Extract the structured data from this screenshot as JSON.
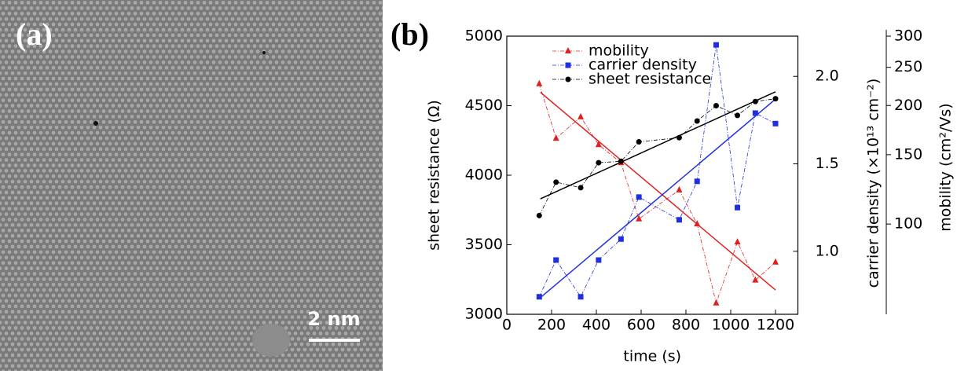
{
  "panel_a": {
    "label": "(a)",
    "scale_bar": "2 nm"
  },
  "chart_data": {
    "type": "line",
    "panel_label": "(b)",
    "x_label": "time (s)",
    "y_label": "sheet resistance (Ω)",
    "y2_label": "carrier density (×10¹³ cm⁻²)",
    "y3_label": "mobility (cm²/Vs)",
    "xlim": [
      0,
      1300
    ],
    "xticks": [
      0,
      200,
      400,
      600,
      800,
      1000,
      1200
    ],
    "ylim": [
      3000,
      5000
    ],
    "yticks": [
      3000,
      3500,
      4000,
      4500,
      5000
    ],
    "y2lim": [
      0.64,
      2.23
    ],
    "y2ticks": [
      {
        "value": 1,
        "label": "1.0"
      },
      1.5,
      {
        "value": 2,
        "label": "2.0"
      }
    ],
    "y3lim": [
      59,
      300
    ],
    "y3_log": true,
    "y3ticks": [
      100,
      150,
      200,
      250,
      300
    ],
    "legend": "upper-center",
    "x": [
      145,
      220,
      330,
      410,
      510,
      590,
      770,
      850,
      935,
      1030,
      1110,
      1200
    ],
    "series": [
      {
        "name": "mobility",
        "color": "#e02020",
        "marker": "triangle",
        "axis": "y3",
        "values": [
          227,
          165,
          187,
          159,
          143,
          103,
          122,
          100,
          63,
          90,
          72,
          80
        ]
      },
      {
        "name": "carrier density",
        "color": "#1f2fe0",
        "marker": "square",
        "axis": "y2",
        "values": [
          0.74,
          0.95,
          0.74,
          0.95,
          1.07,
          1.31,
          1.18,
          1.4,
          2.18,
          1.25,
          1.79,
          1.73
        ]
      },
      {
        "name": "sheet resistance",
        "color": "#000000",
        "marker": "circle",
        "axis": "y",
        "values": [
          3710,
          3950,
          3910,
          4090,
          4100,
          4240,
          4270,
          4390,
          4500,
          4430,
          4530,
          4550
        ]
      }
    ],
    "fits": [
      {
        "color": "#e02020",
        "axis": "y3",
        "x": [
          150,
          1200
        ],
        "values": [
          216,
          68
        ]
      },
      {
        "color": "#1f2fe0",
        "axis": "y2",
        "x": [
          150,
          1200
        ],
        "values": [
          0.735,
          1.87
        ]
      },
      {
        "color": "#000000",
        "axis": "y",
        "x": [
          150,
          1200
        ],
        "values": [
          3830,
          4600
        ]
      }
    ]
  }
}
